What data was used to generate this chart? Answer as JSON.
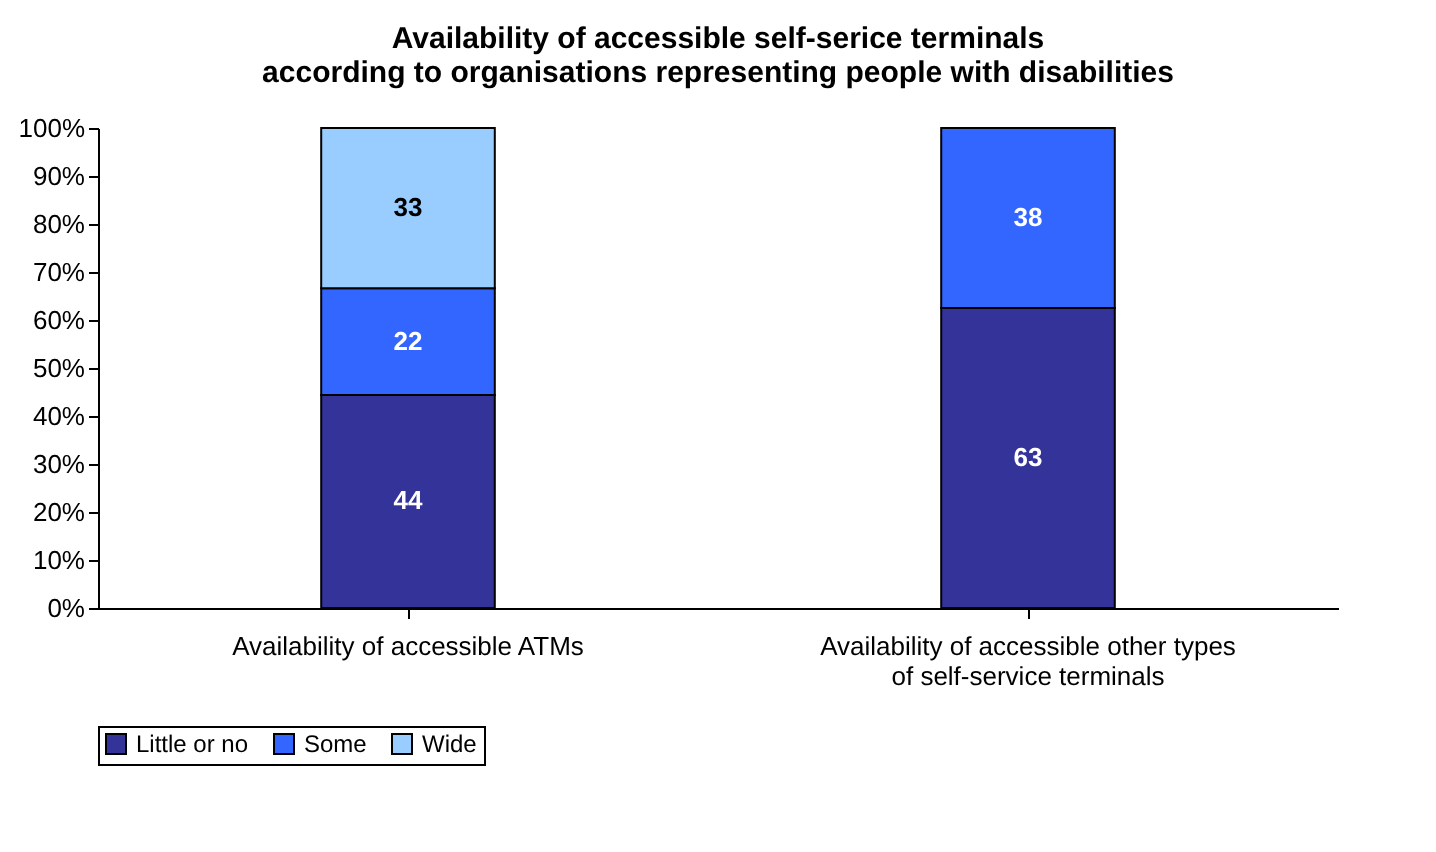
{
  "chart_data": {
    "type": "bar",
    "stacked": true,
    "title": "Availability of accessible self-serice terminals\naccording to organisations representing people with disabilities",
    "categories": [
      "Availability of accessible ATMs",
      "Availability of accessible other types of self-service terminals"
    ],
    "series": [
      {
        "name": "Little or no",
        "color": "#333399",
        "values": [
          44.4,
          62.5
        ],
        "value_labels": [
          "44",
          "63"
        ]
      },
      {
        "name": "Some",
        "color": "#3366ff",
        "values": [
          22.2,
          37.5
        ],
        "value_labels": [
          "22",
          "38"
        ]
      },
      {
        "name": "Wide",
        "color": "#99ccff",
        "values": [
          33.4,
          null
        ],
        "value_labels": [
          "33",
          null
        ]
      }
    ],
    "ylim": [
      0,
      100
    ],
    "yticks": [
      {
        "value": 0,
        "label": "0%"
      },
      {
        "value": 10,
        "label": "10%"
      },
      {
        "value": 20,
        "label": "20%"
      },
      {
        "value": 30,
        "label": "30%"
      },
      {
        "value": 40,
        "label": "40%"
      },
      {
        "value": 50,
        "label": "50%"
      },
      {
        "value": 60,
        "label": "60%"
      },
      {
        "value": 70,
        "label": "70%"
      },
      {
        "value": 80,
        "label": "80%"
      },
      {
        "value": 90,
        "label": "90%"
      },
      {
        "value": 100,
        "label": "100%"
      }
    ],
    "grid": false,
    "legend": "bottom"
  }
}
